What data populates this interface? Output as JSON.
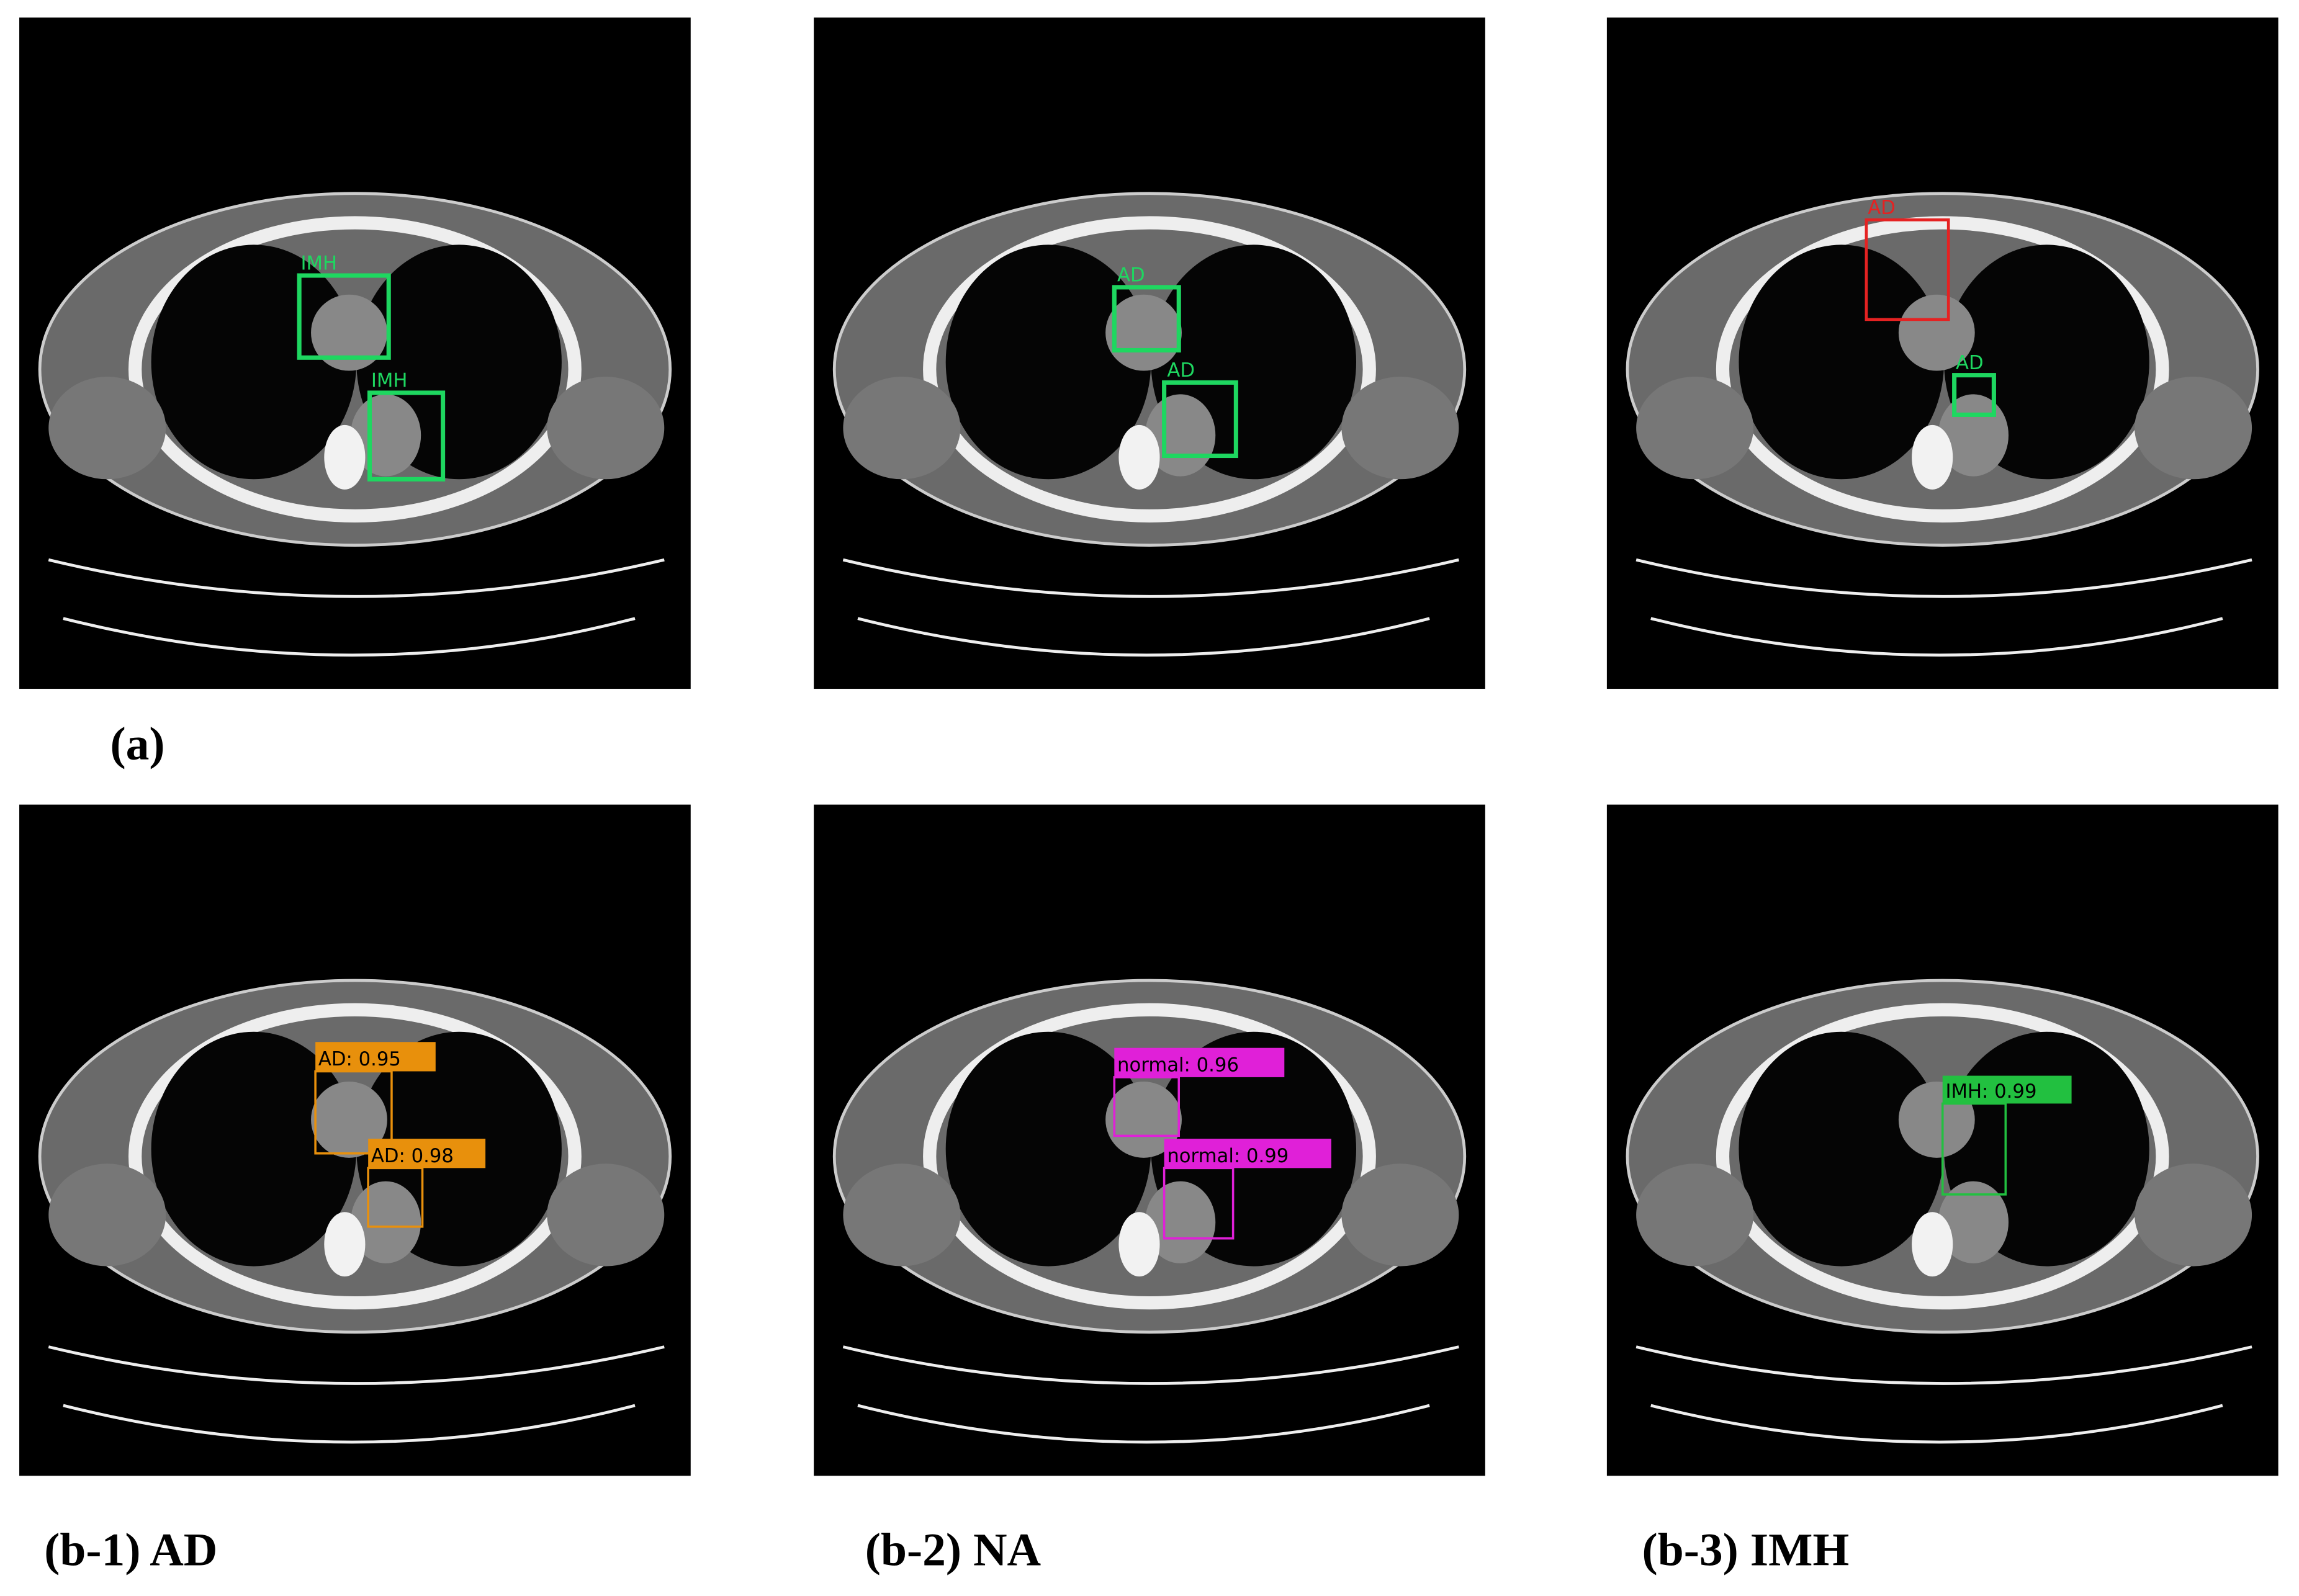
{
  "figure_a": {
    "caption": "(a)",
    "images": [
      {
        "detections": [
          "IMH",
          "IMH"
        ]
      },
      {
        "detections": [
          "AD",
          "AD"
        ]
      },
      {
        "detections": [
          "AD",
          "AD"
        ]
      }
    ]
  },
  "figure_b": [
    {
      "caption": "(b-1) AD",
      "detections": [
        "AD: 0.95",
        "AD: 0.98"
      ]
    },
    {
      "caption": "(b-2) NA",
      "detections": [
        "normal: 0.96",
        "normal: 0.99"
      ]
    },
    {
      "caption": "(b-3) IMH",
      "detections": [
        "IMH: 0.99"
      ]
    }
  ]
}
